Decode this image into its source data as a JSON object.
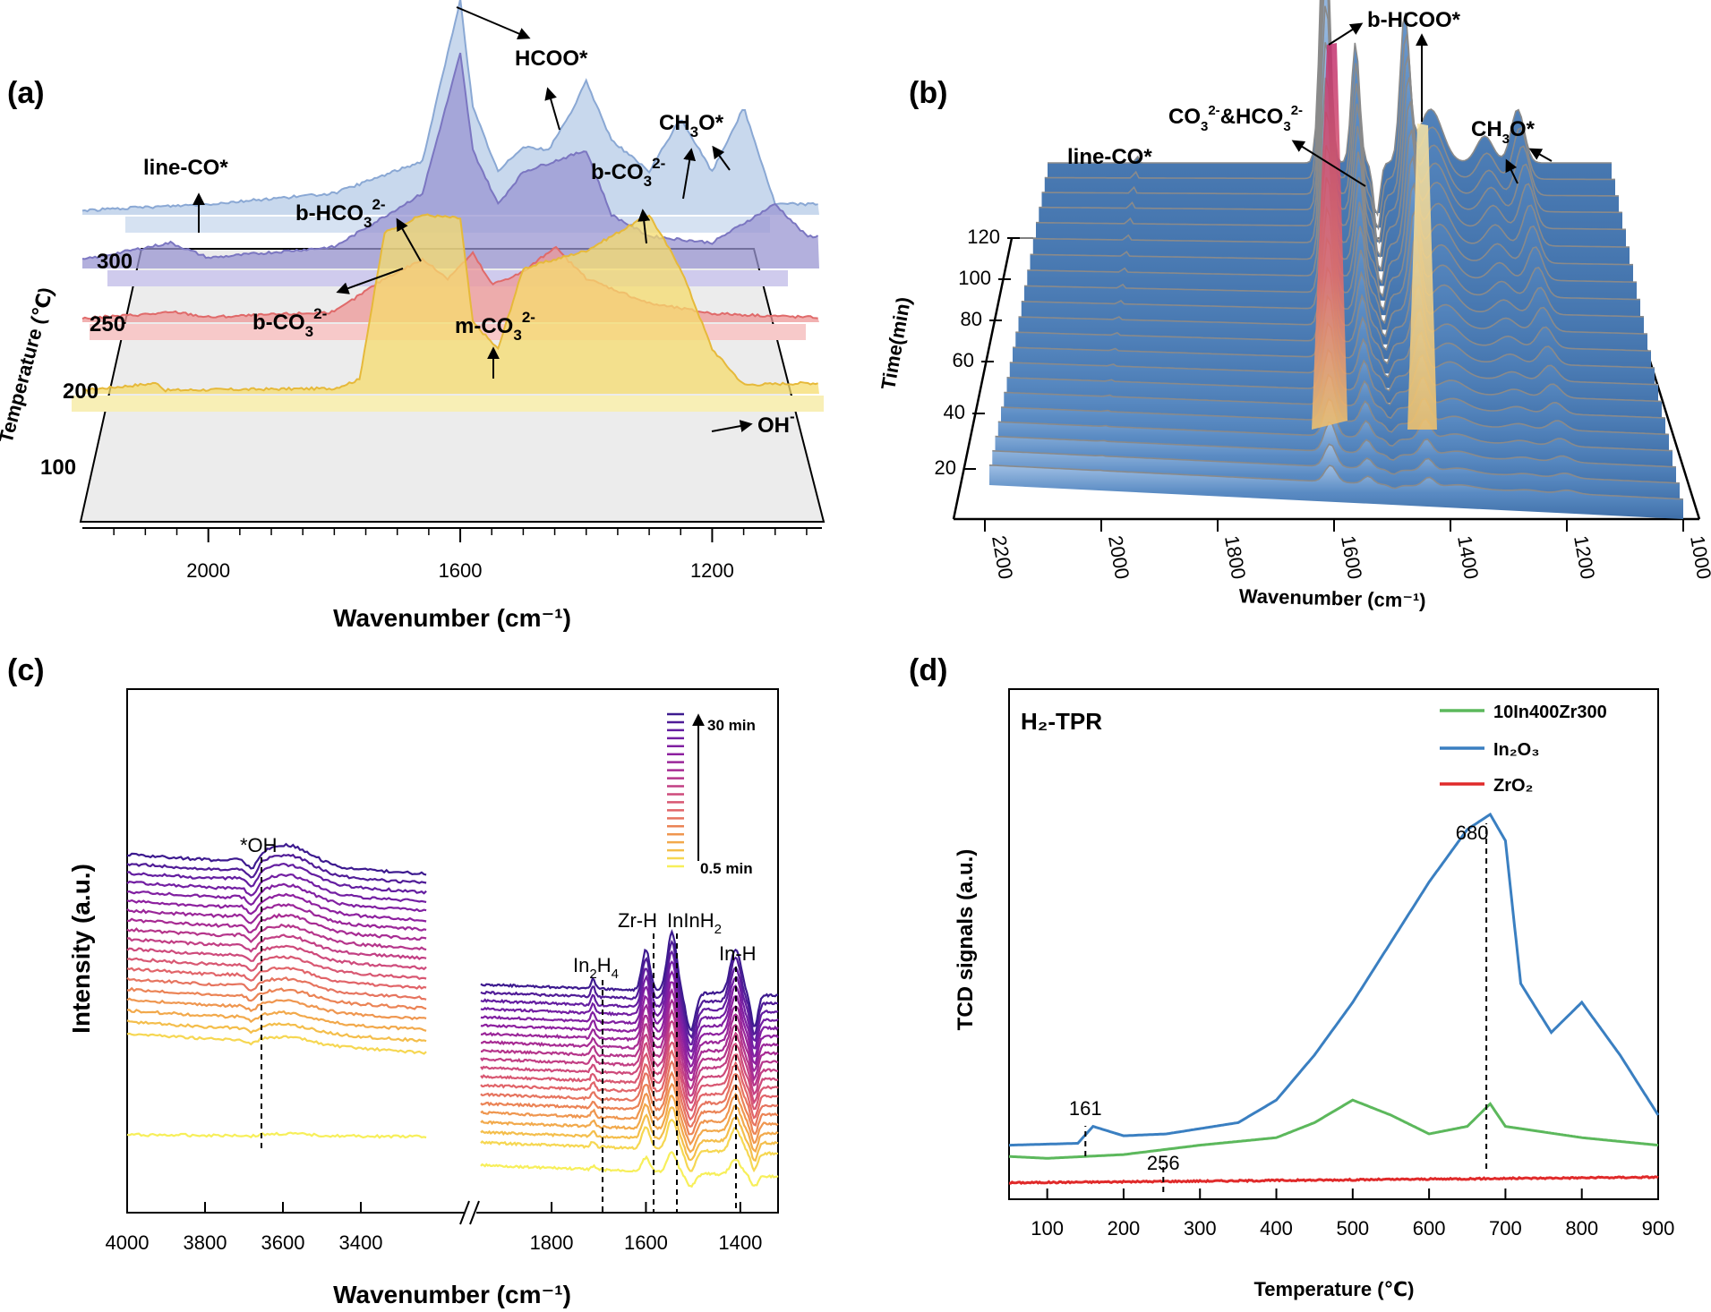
{
  "panels": {
    "a": {
      "label": "(a)"
    },
    "b": {
      "label": "(b)"
    },
    "c": {
      "label": "(c)"
    },
    "d": {
      "label": "(d)"
    }
  },
  "chart_data": [
    {
      "type": "area",
      "panel": "(a)",
      "xlabel": "Wavenumber (cm⁻¹)",
      "ylabel": "Temperature (℃)",
      "xlim": [
        2200,
        1030
      ],
      "x_ticks": [
        "2000",
        "1600",
        "1200"
      ],
      "series_colors": [
        "#f5dc6e",
        "#ee9797",
        "#9a96d2",
        "#b6cbe7"
      ],
      "series": [
        {
          "name": "100",
          "points": [
            [
              2200,
              0.02
            ],
            [
              2080,
              0.06
            ],
            [
              2070,
              0.02
            ],
            [
              1800,
              0.03
            ],
            [
              1760,
              0.08
            ],
            [
              1720,
              0.9
            ],
            [
              1660,
              1.0
            ],
            [
              1600,
              0.98
            ],
            [
              1580,
              0.4
            ],
            [
              1540,
              0.25
            ],
            [
              1500,
              0.7
            ],
            [
              1400,
              0.8
            ],
            [
              1300,
              1.0
            ],
            [
              1250,
              0.7
            ],
            [
              1200,
              0.25
            ],
            [
              1150,
              0.05
            ],
            [
              1050,
              0.06
            ]
          ]
        },
        {
          "name": "200",
          "points": [
            [
              2200,
              0.03
            ],
            [
              2050,
              0.08
            ],
            [
              2000,
              0.04
            ],
            [
              1800,
              0.08
            ],
            [
              1720,
              0.35
            ],
            [
              1660,
              0.5
            ],
            [
              1620,
              0.35
            ],
            [
              1580,
              0.55
            ],
            [
              1550,
              0.3
            ],
            [
              1500,
              0.4
            ],
            [
              1450,
              0.6
            ],
            [
              1400,
              0.35
            ],
            [
              1350,
              0.25
            ],
            [
              1300,
              0.15
            ],
            [
              1200,
              0.07
            ],
            [
              1050,
              0.04
            ]
          ]
        },
        {
          "name": "250",
          "points": [
            [
              2200,
              0.04
            ],
            [
              2060,
              0.12
            ],
            [
              2000,
              0.05
            ],
            [
              1800,
              0.1
            ],
            [
              1660,
              0.35
            ],
            [
              1600,
              1.0
            ],
            [
              1580,
              0.55
            ],
            [
              1540,
              0.3
            ],
            [
              1500,
              0.45
            ],
            [
              1450,
              0.5
            ],
            [
              1400,
              0.55
            ],
            [
              1360,
              0.25
            ],
            [
              1300,
              0.15
            ],
            [
              1200,
              0.12
            ],
            [
              1100,
              0.3
            ],
            [
              1050,
              0.15
            ]
          ]
        },
        {
          "name": "300",
          "points": [
            [
              2200,
              0.02
            ],
            [
              2000,
              0.05
            ],
            [
              1800,
              0.1
            ],
            [
              1660,
              0.25
            ],
            [
              1600,
              1.0
            ],
            [
              1580,
              0.5
            ],
            [
              1540,
              0.2
            ],
            [
              1500,
              0.32
            ],
            [
              1460,
              0.3
            ],
            [
              1420,
              0.5
            ],
            [
              1400,
              0.62
            ],
            [
              1360,
              0.35
            ],
            [
              1300,
              0.2
            ],
            [
              1250,
              0.45
            ],
            [
              1200,
              0.2
            ],
            [
              1150,
              0.5
            ],
            [
              1100,
              0.05
            ]
          ]
        }
      ],
      "y_labels": [
        "300",
        "250",
        "200",
        "100"
      ],
      "annotations": [
        {
          "text": "HCOO*"
        },
        {
          "text": "line-CO*"
        },
        {
          "text": "b-HCO",
          "sub": "3",
          "sup": "2-"
        },
        {
          "text": "b-CO",
          "sub": "3",
          "sup": "2-"
        },
        {
          "text": "b-CO",
          "sub": "3",
          "sup": "2-"
        },
        {
          "text": "CH",
          "sub": "3",
          "tail": "O*"
        },
        {
          "text": "m-CO",
          "sub": "3",
          "sup": "2-"
        },
        {
          "text": "OH",
          "sup": "-"
        }
      ]
    },
    {
      "type": "area",
      "panel": "(b)",
      "xlabel": "Wavenumber (cm⁻¹)",
      "ylabel": "Time(min)",
      "xlim": [
        2200,
        1000
      ],
      "x_ticks": [
        "2200",
        "2000",
        "1800",
        "1600",
        "1400",
        "1200",
        "1000"
      ],
      "y_ticks": [
        "120",
        "100",
        "80",
        "60",
        "40",
        "20"
      ],
      "time_min": [
        20,
        25,
        30,
        35,
        40,
        45,
        50,
        55,
        60,
        65,
        70,
        75,
        80,
        85,
        90,
        95,
        100,
        105,
        110,
        115,
        120
      ],
      "colors": {
        "base": "#5b8cc4",
        "line": "#888888",
        "hot": "#c2306e",
        "warm": "#f4c36a"
      },
      "annotations": [
        {
          "text": "line-CO*"
        },
        {
          "text": "CO",
          "sub": "3",
          "sup": "2-",
          "mid": "&HCO",
          "sub2": "3",
          "sup2": "2-"
        },
        {
          "text": "b-HCOO*"
        },
        {
          "text": "CH",
          "sub": "3",
          "tail": "O*"
        }
      ]
    },
    {
      "type": "line",
      "panel": "(c)",
      "xlabel": "Wavenumber (cm⁻¹)",
      "ylabel": "Intensity (a.u.)",
      "x_ticks_left": [
        "4000",
        "3800",
        "3600",
        "3400"
      ],
      "x_ticks_right": [
        "1800",
        "1600",
        "1400"
      ],
      "legend": {
        "top": "30 min",
        "bottom": "0.5 min",
        "colors": [
          "#f7ef5a",
          "#f4b548",
          "#ec8752",
          "#e0626a",
          "#c94480",
          "#a92c92",
          "#8a1fa0",
          "#6a1ea3",
          "#3d1a8f"
        ]
      },
      "n_curves": 20,
      "annotations": [
        {
          "text": "*OH"
        },
        {
          "text": "In",
          "sub": "2",
          "mid": "H",
          "sub2": "4"
        },
        {
          "text": "Zr-H"
        },
        {
          "text": "InInH",
          "sub": "2"
        },
        {
          "text": "In-H"
        }
      ]
    },
    {
      "type": "line",
      "panel": "(d)",
      "title": "H₂-TPR",
      "xlabel": "Temperature (℃)",
      "ylabel": "TCD signals (a.u.)",
      "xlim": [
        50,
        900
      ],
      "x_ticks": [
        "100",
        "200",
        "300",
        "400",
        "500",
        "600",
        "700",
        "800",
        "900"
      ],
      "series": [
        {
          "name": "10In400Zr300",
          "color": "#5cb85c",
          "points": [
            [
              50,
              0.09
            ],
            [
              100,
              0.085
            ],
            [
              200,
              0.095
            ],
            [
              300,
              0.12
            ],
            [
              400,
              0.14
            ],
            [
              450,
              0.18
            ],
            [
              500,
              0.24
            ],
            [
              550,
              0.2
            ],
            [
              600,
              0.15
            ],
            [
              650,
              0.17
            ],
            [
              680,
              0.23
            ],
            [
              700,
              0.17
            ],
            [
              800,
              0.14
            ],
            [
              900,
              0.12
            ]
          ]
        },
        {
          "name": "In₂O₃",
          "color": "#3a7fc1",
          "points": [
            [
              50,
              0.12
            ],
            [
              140,
              0.125
            ],
            [
              160,
              0.17
            ],
            [
              200,
              0.145
            ],
            [
              256,
              0.15
            ],
            [
              350,
              0.18
            ],
            [
              400,
              0.24
            ],
            [
              450,
              0.36
            ],
            [
              500,
              0.5
            ],
            [
              550,
              0.66
            ],
            [
              600,
              0.82
            ],
            [
              650,
              0.96
            ],
            [
              680,
              1.0
            ],
            [
              700,
              0.93
            ],
            [
              720,
              0.55
            ],
            [
              760,
              0.42
            ],
            [
              800,
              0.5
            ],
            [
              850,
              0.36
            ],
            [
              900,
              0.2
            ]
          ]
        },
        {
          "name": "ZrO₂",
          "color": "#e02a2a",
          "points": [
            [
              50,
              0.02
            ],
            [
              900,
              0.035
            ]
          ]
        }
      ],
      "peak_labels": [
        "161",
        "256",
        "680"
      ]
    }
  ]
}
